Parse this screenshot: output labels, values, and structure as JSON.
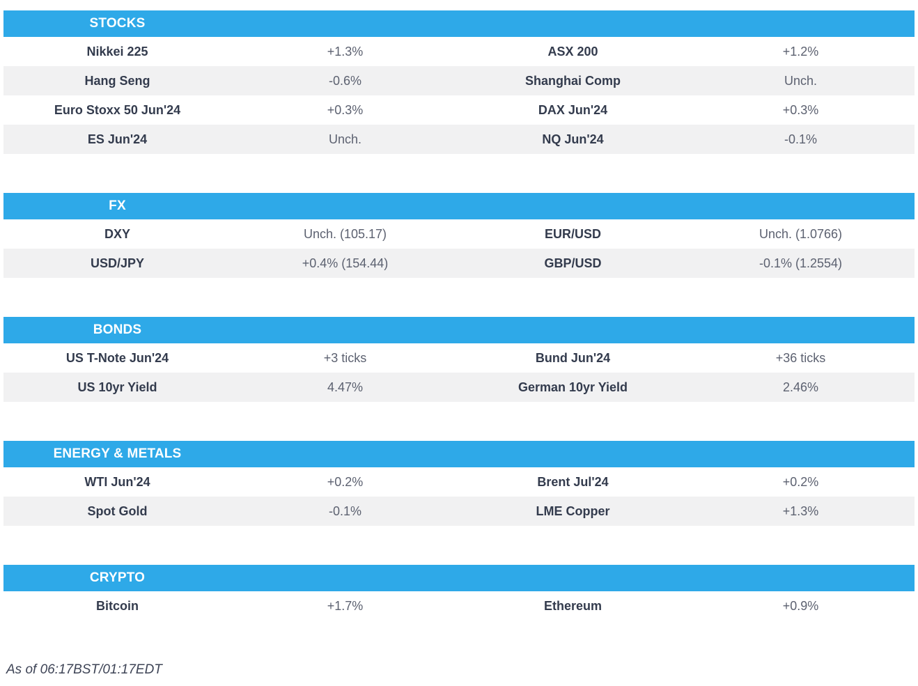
{
  "sections": [
    {
      "title": "STOCKS",
      "rows": [
        {
          "label1": "Nikkei 225",
          "value1": "+1.3%",
          "label2": "ASX 200",
          "value2": "+1.2%"
        },
        {
          "label1": "Hang Seng",
          "value1": "-0.6%",
          "label2": "Shanghai Comp",
          "value2": "Unch."
        },
        {
          "label1": "Euro Stoxx 50 Jun'24",
          "value1": "+0.3%",
          "label2": "DAX Jun'24",
          "value2": "+0.3%"
        },
        {
          "label1": "ES Jun'24",
          "value1": "Unch.",
          "label2": "NQ Jun'24",
          "value2": "-0.1%"
        }
      ]
    },
    {
      "title": "FX",
      "rows": [
        {
          "label1": "DXY",
          "value1": "Unch. (105.17)",
          "label2": "EUR/USD",
          "value2": "Unch. (1.0766)"
        },
        {
          "label1": "USD/JPY",
          "value1": "+0.4% (154.44)",
          "label2": "GBP/USD",
          "value2": "-0.1% (1.2554)"
        }
      ]
    },
    {
      "title": "BONDS",
      "rows": [
        {
          "label1": "US T-Note Jun'24",
          "value1": "+3 ticks",
          "label2": "Bund Jun'24",
          "value2": "+36 ticks"
        },
        {
          "label1": "US 10yr Yield",
          "value1": "4.47%",
          "label2": "German 10yr Yield",
          "value2": "2.46%"
        }
      ]
    },
    {
      "title": "ENERGY & METALS",
      "rows": [
        {
          "label1": "WTI Jun'24",
          "value1": "+0.2%",
          "label2": "Brent Jul'24",
          "value2": "+0.2%"
        },
        {
          "label1": "Spot Gold",
          "value1": "-0.1%",
          "label2": "LME Copper",
          "value2": "+1.3%"
        }
      ]
    },
    {
      "title": "CRYPTO",
      "rows": [
        {
          "label1": "Bitcoin",
          "value1": "+1.7%",
          "label2": "Ethereum",
          "value2": "+0.9%"
        }
      ]
    }
  ],
  "footer": {
    "as_of": "As of 06:17BST/01:17EDT"
  },
  "colors": {
    "header_bg": "#2EA9E8",
    "header_text": "#FFFFFF",
    "row_alt_bg": "#F1F1F2",
    "label_text": "#333B4D",
    "value_text": "#5C6170"
  }
}
